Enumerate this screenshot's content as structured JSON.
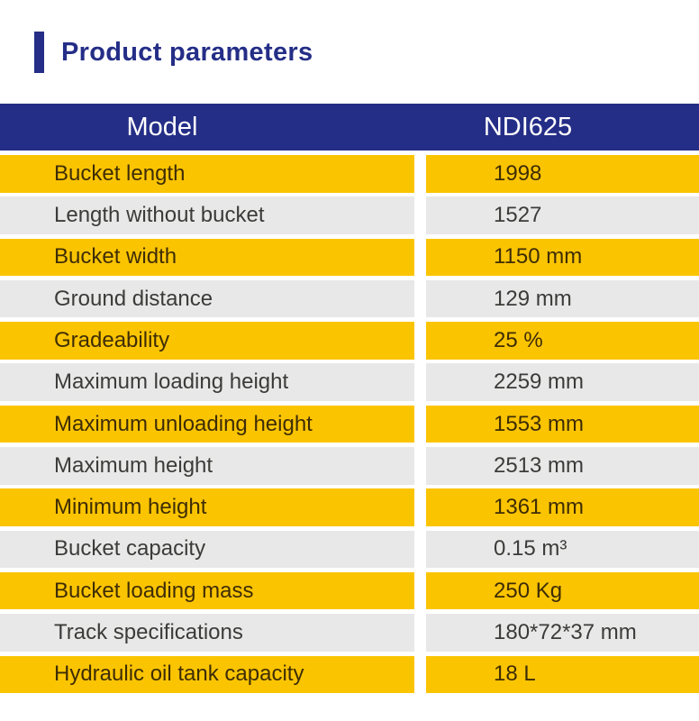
{
  "page": {
    "title": "Product parameters"
  },
  "colors": {
    "navy": "#242E87",
    "yellow": "#FBC400",
    "gray": "#E8E8E8",
    "header_text": "#FFFFFF",
    "text_on_yellow": "#3E2D05",
    "text_on_gray": "#3B3B39"
  },
  "table": {
    "header": {
      "model_label": "Model",
      "model_value": "NDI625"
    },
    "rows": [
      {
        "label": "Bucket length",
        "value": "1998"
      },
      {
        "label": "Length without bucket",
        "value": "1527"
      },
      {
        "label": "Bucket width",
        "value": "1150 mm"
      },
      {
        "label": "Ground distance",
        "value": "129 mm"
      },
      {
        "label": "Gradeability",
        "value": "25 %"
      },
      {
        "label": "Maximum loading height",
        "value": "2259 mm"
      },
      {
        "label": "Maximum unloading height",
        "value": "1553 mm"
      },
      {
        "label": "Maximum height",
        "value": "2513 mm"
      },
      {
        "label": "Minimum height",
        "value": "1361 mm"
      },
      {
        "label": "Bucket capacity",
        "value": "0.15 m³"
      },
      {
        "label": "Bucket loading mass",
        "value": "250 Kg"
      },
      {
        "label": "Track specifications",
        "value": "180*72*37 mm"
      },
      {
        "label": "Hydraulic oil tank capacity",
        "value": "18 L"
      }
    ]
  }
}
